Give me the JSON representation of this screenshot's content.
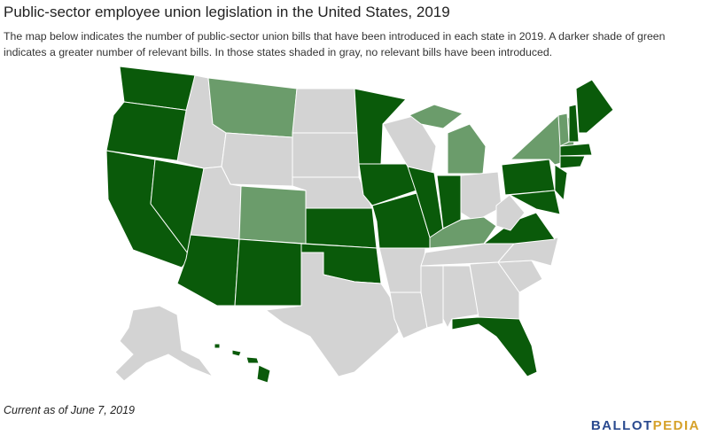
{
  "header": {
    "title": "Public-sector employee union legislation in the United States, 2019",
    "description": "The map below indicates the number of public-sector union bills that have been introduced in each state in 2019. A darker shade of green indicates a greater number of relevant bills. In those states shaded in gray, no relevant bills have been introduced."
  },
  "footer": {
    "note": "Current as of June 7, 2019",
    "logo_part1": "BALLOT",
    "logo_part2": "PEDIA"
  }
}
